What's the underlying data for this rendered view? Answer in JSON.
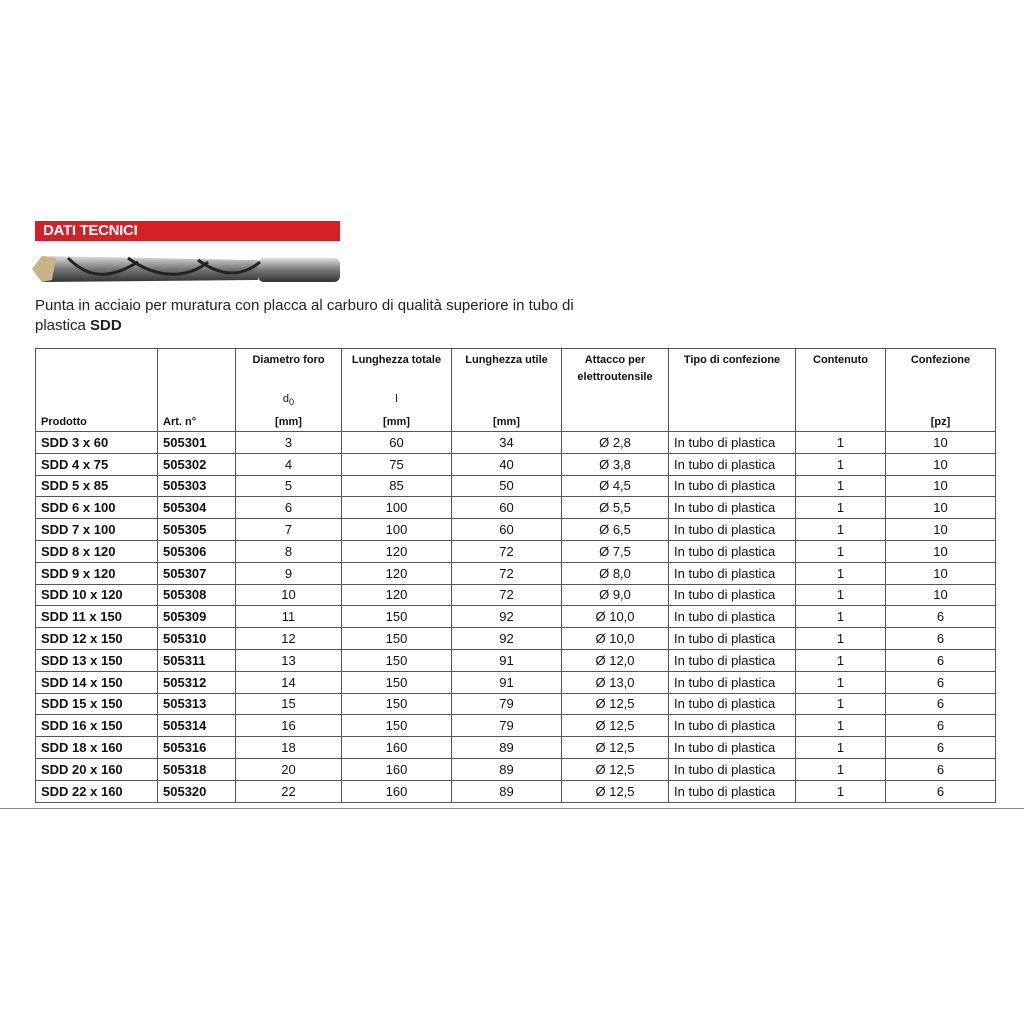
{
  "header": {
    "banner": "DATI TECNICI",
    "description": "Punta in acciaio per muratura con placca al carburo di qualità superiore in tubo di plastica",
    "description_bold": "SDD"
  },
  "table": {
    "columns": [
      {
        "title": "Prodotto"
      },
      {
        "title": "Art. n°"
      },
      {
        "title": "Diametro foro",
        "symbol": "d",
        "symbol_sub": "0",
        "unit": "[mm]"
      },
      {
        "title": "Lunghezza totale",
        "symbol": "l",
        "unit": "[mm]"
      },
      {
        "title": "Lunghezza utile",
        "unit": "[mm]"
      },
      {
        "title": "Attacco per elettroutensile"
      },
      {
        "title": "Tipo di confezione"
      },
      {
        "title": "Contenuto"
      },
      {
        "title": "Confezione",
        "unit": "[pz]"
      }
    ],
    "rows": [
      [
        "SDD 3 x 60",
        505301,
        3,
        60,
        34,
        "Ø 2,8",
        "In tubo di plastica",
        1,
        10
      ],
      [
        "SDD 4 x 75",
        505302,
        4,
        75,
        40,
        "Ø 3,8",
        "In tubo di plastica",
        1,
        10
      ],
      [
        "SDD 5 x 85",
        505303,
        5,
        85,
        50,
        "Ø 4,5",
        "In tubo di plastica",
        1,
        10
      ],
      [
        "SDD 6 x 100",
        505304,
        6,
        100,
        60,
        "Ø 5,5",
        "In tubo di plastica",
        1,
        10
      ],
      [
        "SDD 7 x 100",
        505305,
        7,
        100,
        60,
        "Ø 6,5",
        "In tubo di plastica",
        1,
        10
      ],
      [
        "SDD 8 x 120",
        505306,
        8,
        120,
        72,
        "Ø 7,5",
        "In tubo di plastica",
        1,
        10
      ],
      [
        "SDD 9 x 120",
        505307,
        9,
        120,
        72,
        "Ø 8,0",
        "In tubo di plastica",
        1,
        10
      ],
      [
        "SDD 10 x 120",
        505308,
        10,
        120,
        72,
        "Ø 9,0",
        "In tubo di plastica",
        1,
        10
      ],
      [
        "SDD 11 x 150",
        505309,
        11,
        150,
        92,
        "Ø 10,0",
        "In tubo di plastica",
        1,
        6
      ],
      [
        "SDD 12 x 150",
        505310,
        12,
        150,
        92,
        "Ø 10,0",
        "In tubo di plastica",
        1,
        6
      ],
      [
        "SDD 13 x 150",
        505311,
        13,
        150,
        91,
        "Ø 12,0",
        "In tubo di plastica",
        1,
        6
      ],
      [
        "SDD 14 x 150",
        505312,
        14,
        150,
        91,
        "Ø 13,0",
        "In tubo di plastica",
        1,
        6
      ],
      [
        "SDD 15 x 150",
        505313,
        15,
        150,
        79,
        "Ø 12,5",
        "In tubo di plastica",
        1,
        6
      ],
      [
        "SDD 16 x 150",
        505314,
        16,
        150,
        79,
        "Ø 12,5",
        "In tubo di plastica",
        1,
        6
      ],
      [
        "SDD 18 x 160",
        505316,
        18,
        160,
        89,
        "Ø 12,5",
        "In tubo di plastica",
        1,
        6
      ],
      [
        "SDD 20 x 160",
        505318,
        20,
        160,
        89,
        "Ø 12,5",
        "In tubo di plastica",
        1,
        6
      ],
      [
        "SDD 22 x 160",
        505320,
        22,
        160,
        89,
        "Ø 12,5",
        "In tubo di plastica",
        1,
        6
      ]
    ]
  }
}
